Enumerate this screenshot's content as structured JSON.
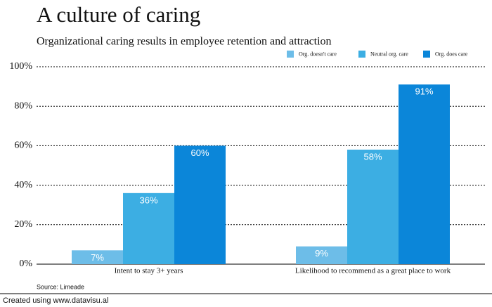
{
  "chart_data": {
    "type": "bar",
    "title": "A culture of caring",
    "subtitle": "Organizational caring results in employee retention and attraction",
    "categories": [
      "Intent to stay 3+ years",
      "Likelihood to recommend as a great place to work"
    ],
    "series": [
      {
        "name": "Org. doesn't care",
        "color": "#6dbde8",
        "values": [
          7,
          9
        ],
        "value_labels": [
          "7%",
          "9%"
        ]
      },
      {
        "name": "Neutral org. care",
        "color": "#3caee3",
        "values": [
          36,
          58
        ],
        "value_labels": [
          "36%",
          "58%"
        ]
      },
      {
        "name": "Org. does care",
        "color": "#0b86d9",
        "values": [
          60,
          91
        ],
        "value_labels": [
          "60%",
          "91%"
        ]
      }
    ],
    "ylim": [
      0,
      100
    ],
    "yticks": [
      {
        "value": 0,
        "label": "0%"
      },
      {
        "value": 20,
        "label": "20%"
      },
      {
        "value": 40,
        "label": "40%"
      },
      {
        "value": 60,
        "label": "60%"
      },
      {
        "value": 80,
        "label": "80%"
      },
      {
        "value": 100,
        "label": "100%"
      }
    ],
    "grid": true,
    "legend": "top-right",
    "source": "Source: Limeade",
    "footer": "Created using www.datavisu.al"
  }
}
